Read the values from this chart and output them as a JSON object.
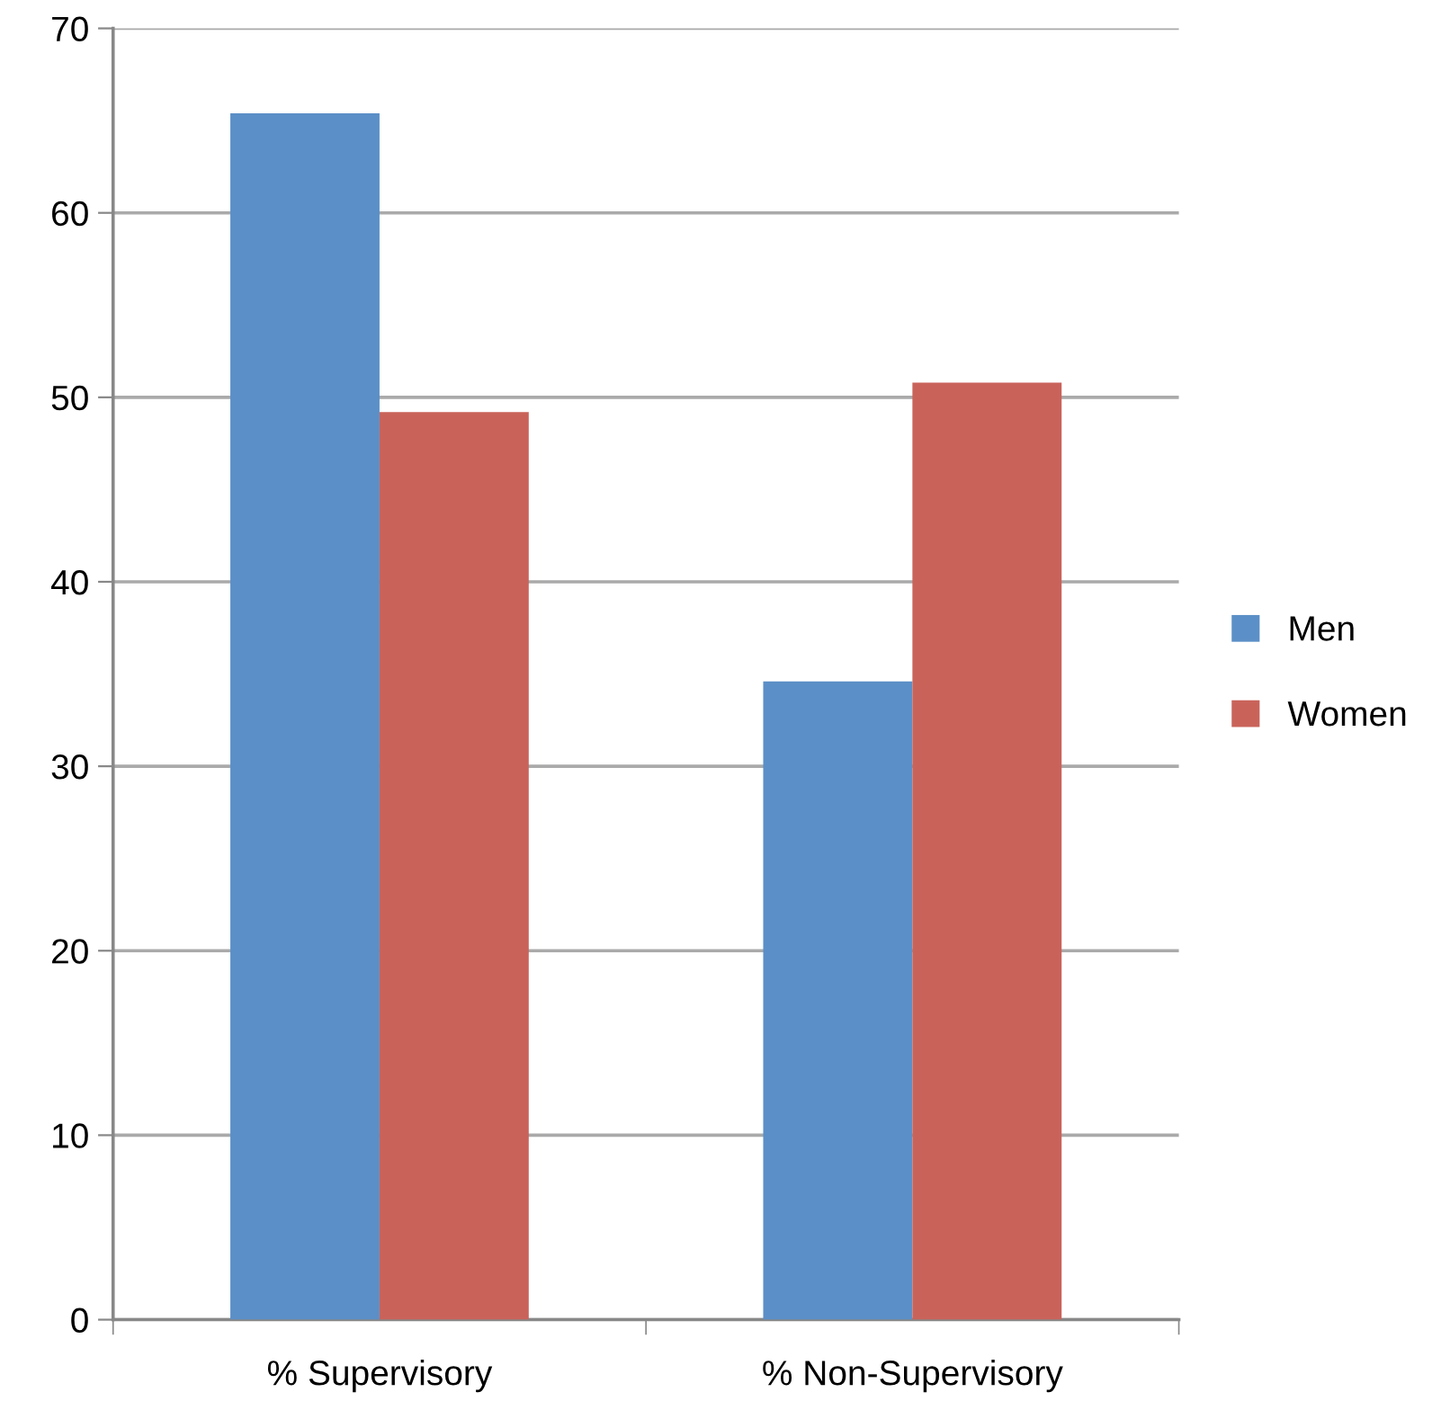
{
  "chart_data": {
    "type": "bar",
    "categories": [
      "% Supervisory",
      "% Non-Supervisory"
    ],
    "series": [
      {
        "name": "Men",
        "color": "#5b8fc7",
        "values": [
          65.4,
          34.6
        ]
      },
      {
        "name": "Women",
        "color": "#c9635a",
        "values": [
          49.2,
          50.8
        ]
      }
    ],
    "ylim": [
      0,
      70
    ],
    "yticks": [
      0,
      10,
      20,
      30,
      40,
      50,
      60,
      70
    ],
    "grid": "y",
    "legend": "right"
  }
}
